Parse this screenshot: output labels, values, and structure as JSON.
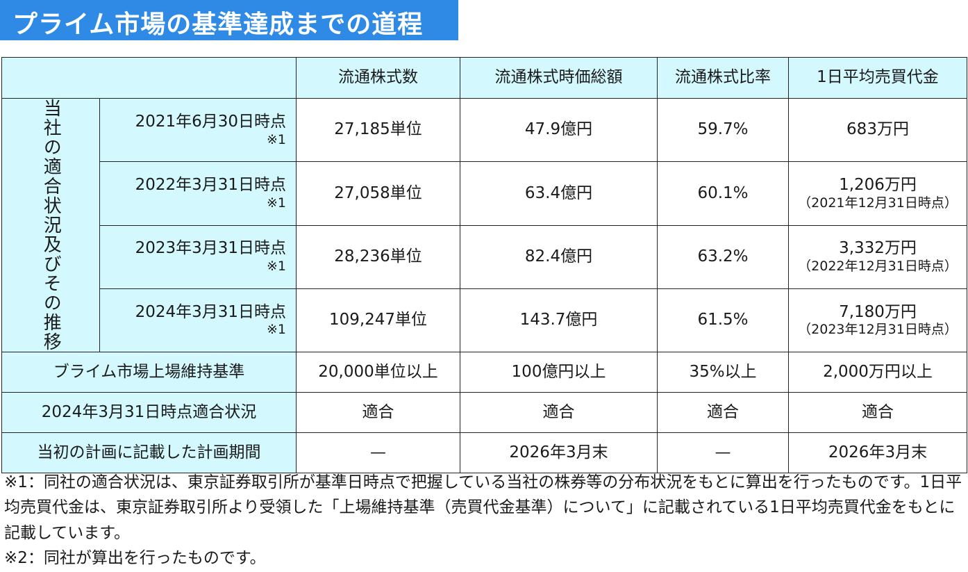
{
  "title": "プライム市場の基準達成までの道程",
  "table": {
    "columns": [
      "流通株式数",
      "流通株式時価総額",
      "流通株式比率",
      "1日平均売買代金"
    ],
    "group_label": "当社の適合状況及びその推移",
    "rows": [
      {
        "date": "2021年6月30日時点",
        "mark": "※1",
        "cells": [
          "27,185単位",
          "47.9億円",
          "59.7%",
          "683万円"
        ],
        "sub": ""
      },
      {
        "date": "2022年3月31日時点",
        "mark": "※1",
        "cells": [
          "27,058単位",
          "63.4億円",
          "60.1%",
          "1,206万円"
        ],
        "sub": "（2021年12月31日時点）"
      },
      {
        "date": "2023年3月31日時点",
        "mark": "※1",
        "cells": [
          "28,236単位",
          "82.4億円",
          "63.2%",
          "3,332万円"
        ],
        "sub": "（2022年12月31日時点）"
      },
      {
        "date": "2024年3月31日時点",
        "mark": "※1",
        "cells": [
          "109,247単位",
          "143.7億円",
          "61.5%",
          "7,180万円"
        ],
        "sub": "（2023年12月31日時点）"
      }
    ],
    "footer_rows": [
      {
        "label": "ブライム市場上場維持基準",
        "cells": [
          "20,000単位以上",
          "100億円以上",
          "35%以上",
          "2,000万円以上"
        ]
      },
      {
        "label": "2024年3月31日時点適合状況",
        "cells": [
          "適合",
          "適合",
          "適合",
          "適合"
        ]
      },
      {
        "label": "当初の計画に記載した計画期間",
        "cells": [
          "—",
          "2026年3月末",
          "—",
          "2026年3月末"
        ]
      }
    ]
  },
  "notes": [
    "※1：同社の適合状況は、東京証券取引所が基準日時点で把握している当社の株券等の分布状況をもとに算出を行ったものです。1日平均売買代金は、東京証券取引所より受領した「上場維持基準（売買代金基準）について」に記載されている1日平均売買代金をもとに記載しています。",
    "※2：同社が算出を行ったものです。"
  ],
  "colors": {
    "title_bg": "#2f8ae6",
    "header_bg": "#d3f8fd",
    "border": "#222222"
  }
}
